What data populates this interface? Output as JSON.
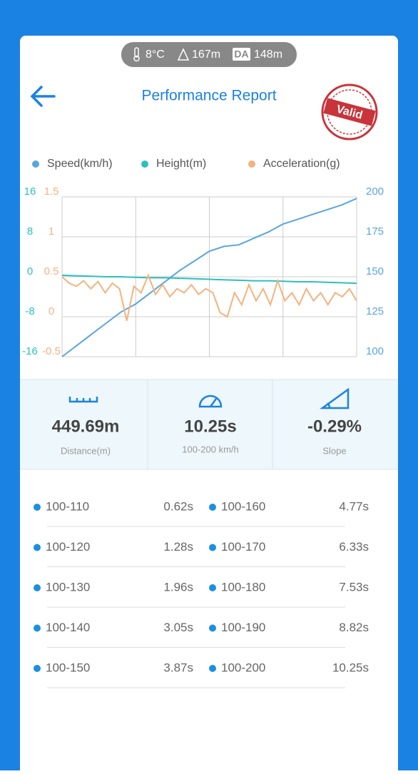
{
  "status": {
    "temperature": "8°C",
    "altitude": "167m",
    "da_label": "DA",
    "density_altitude": "148m"
  },
  "header": {
    "title": "Performance Report",
    "stamp": "Valid"
  },
  "chart_data": {
    "type": "line",
    "grid": true,
    "series": [
      {
        "name": "Speed(km/h)",
        "color": "#5aa5de",
        "ylim": [
          100,
          200
        ],
        "yticks": [
          200,
          175,
          150,
          125,
          100
        ],
        "values": [
          100,
          107,
          114,
          121,
          128,
          133,
          140,
          147,
          154,
          160,
          166,
          169,
          170,
          174,
          178,
          183,
          186,
          189,
          192,
          195,
          199
        ]
      },
      {
        "name": "Height(m)",
        "color": "#2ebfbf",
        "ylim": [
          -16,
          16
        ],
        "yticks": [
          16,
          8,
          0,
          -8,
          -16
        ],
        "values": [
          0.3,
          0.2,
          0.1,
          0,
          0,
          -0.1,
          -0.2,
          -0.2,
          -0.3,
          -0.4,
          -0.5,
          -0.6,
          -0.7,
          -0.8,
          -0.8,
          -0.9,
          -1,
          -1,
          -1.1,
          -1.2,
          -1.3
        ]
      },
      {
        "name": "Acceleration(g)",
        "color": "#f4b27e",
        "ylim": [
          -0.5,
          1.5
        ],
        "yticks": [
          1.5,
          1,
          0.5,
          0,
          -0.5
        ],
        "values": [
          0.5,
          0.42,
          0.38,
          0.45,
          0.35,
          0.44,
          0.3,
          0.42,
          0.35,
          -0.05,
          0.38,
          0.3,
          0.52,
          0.28,
          0.4,
          0.25,
          0.35,
          0.3,
          0.4,
          0.28,
          0.35,
          0.3,
          0.05,
          0.0,
          0.3,
          0.15,
          0.4,
          0.2,
          0.35,
          0.15,
          0.45,
          0.2,
          0.3,
          0.15,
          0.35,
          0.2,
          0.3,
          0.15,
          0.3,
          0.25,
          0.35,
          0.2
        ]
      }
    ]
  },
  "stats": [
    {
      "value": "449.69m",
      "label": "Distance(m)"
    },
    {
      "value": "10.25s",
      "label": "100-200 km/h"
    },
    {
      "value": "-0.29%",
      "label": "Slope"
    }
  ],
  "table": {
    "items": [
      {
        "range": "100-110",
        "time": "0.62s"
      },
      {
        "range": "100-120",
        "time": "1.28s"
      },
      {
        "range": "100-130",
        "time": "1.96s"
      },
      {
        "range": "100-140",
        "time": "3.05s"
      },
      {
        "range": "100-150",
        "time": "3.87s"
      },
      {
        "range": "100-160",
        "time": "4.77s"
      },
      {
        "range": "100-170",
        "time": "6.33s"
      },
      {
        "range": "100-180",
        "time": "7.53s"
      },
      {
        "range": "100-190",
        "time": "8.82s"
      },
      {
        "range": "100-200",
        "time": "10.25s"
      }
    ]
  }
}
